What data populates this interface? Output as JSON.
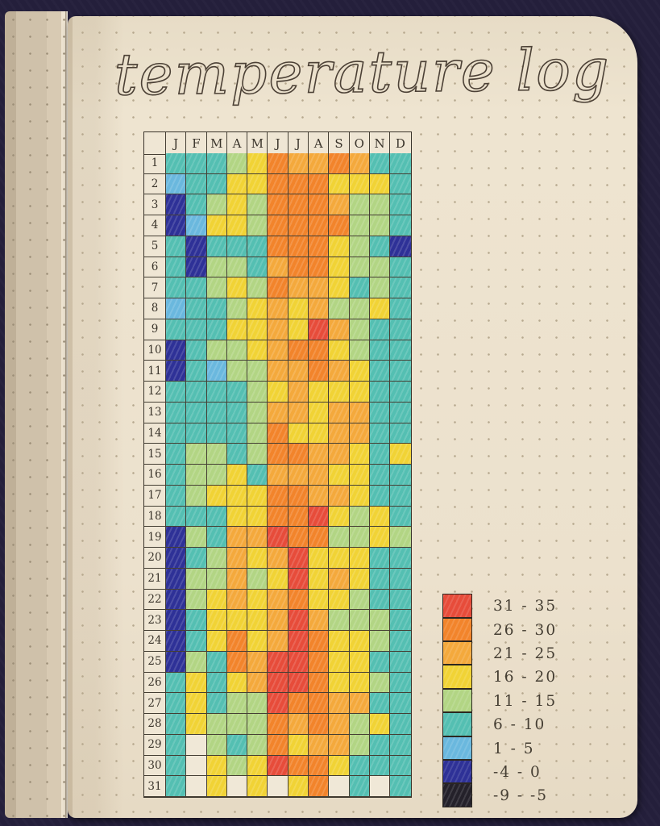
{
  "photo": {
    "surface_color": "#241f3b",
    "page_color": "#ece1cd",
    "title": "temperature log"
  },
  "chart_data": {
    "type": "heatmap",
    "title": "temperature log",
    "columns": [
      "J",
      "F",
      "M",
      "A",
      "M",
      "J",
      "J",
      "A",
      "S",
      "O",
      "N",
      "D"
    ],
    "rows": [
      "1",
      "2",
      "3",
      "4",
      "5",
      "6",
      "7",
      "8",
      "9",
      "10",
      "11",
      "12",
      "13",
      "14",
      "15",
      "16",
      "17",
      "18",
      "19",
      "20",
      "21",
      "22",
      "23",
      "24",
      "25",
      "26",
      "27",
      "28",
      "29",
      "30",
      "31"
    ],
    "legend": [
      {
        "code": "R",
        "label": "31 - 35",
        "color": "#e74c3a"
      },
      {
        "code": "O",
        "label": "26 - 30",
        "color": "#f2842b"
      },
      {
        "code": "A",
        "label": "21 - 25",
        "color": "#f4a93c"
      },
      {
        "code": "Y",
        "label": "16 - 20",
        "color": "#f1d335"
      },
      {
        "code": "G",
        "label": "11 - 15",
        "color": "#b2d584"
      },
      {
        "code": "T",
        "label": "6 - 10",
        "color": "#54bfb2"
      },
      {
        "code": "C",
        "label": "1 - 5",
        "color": "#6ab8de"
      },
      {
        "code": "B",
        "label": "-4 - 0",
        "color": "#2e3197"
      },
      {
        "code": "K",
        "label": "-9 - -5",
        "color": "#24212a"
      }
    ],
    "empty_code": "E",
    "empty_color": "#f0e8d7",
    "cells": [
      "TTTGYOAAOATT",
      "CTTYYOOOYYYT",
      "BTGYGOOOAGGT",
      "BCYYGOOOOGGT",
      "TBTTTOOOYGTB",
      "TBGGTAOOYGGT",
      "TTGYGOAAYTGT",
      "CTTGYAYAGGYT",
      "TTTYYAYRAGTT",
      "BTGGYAOOYGTT",
      "BTCGGAAOAYTT",
      "TTTTGYAYYYTT",
      "TTTTGAAYAATT",
      "TTTTGOYYAATT",
      "TGGTGOOAAYTY",
      "TGGYTAAAYYTT",
      "TGYYYOOAAYTT",
      "TTTYYOORYGYT",
      "BGTAAROOGGYG",
      "BTGAYARYYYTT",
      "BGGAGYRYAYTT",
      "BGYAYAOYYGTT",
      "BTYYYARAGGGT",
      "BTYOYAROYYGT",
      "BGTOARROYYTT",
      "TYTYARROYYGT",
      "TYTGGROOAATT",
      "TYGGGOAOAGYT",
      "TEGTGOYAAGTT",
      "TEYGYROOYTTT",
      "TEYEYEYOETET"
    ]
  }
}
